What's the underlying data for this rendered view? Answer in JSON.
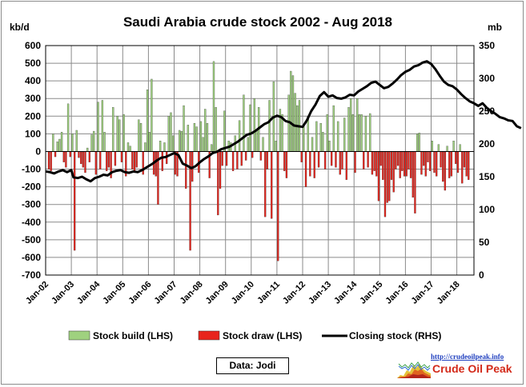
{
  "chart_data": {
    "type": "bar+line",
    "title": "Saudi Arabia crude stock 2002 - Aug 2018",
    "left_axis": {
      "unit_label": "kb/d",
      "min": -700,
      "max": 600,
      "step": 100,
      "ticks": [
        "600",
        "500",
        "400",
        "300",
        "200",
        "100",
        "0",
        "-100",
        "-200",
        "-300",
        "-400",
        "-500",
        "-600",
        "-700"
      ]
    },
    "right_axis": {
      "unit_label": "mb",
      "min": 0,
      "max": 350,
      "step": 50,
      "ticks": [
        "350",
        "300",
        "250",
        "200",
        "150",
        "100",
        "50",
        "0"
      ]
    },
    "x_labels": [
      "Jan-02",
      "Jan-03",
      "Jan-04",
      "Jan-05",
      "Jan-06",
      "Jan-07",
      "Jan-08",
      "Jan-09",
      "Jan-10",
      "Jan-11",
      "Jan-12",
      "Jan-13",
      "Jan-14",
      "Jan-15",
      "Jan-16",
      "Jan-17",
      "Jan-18"
    ],
    "months": 200,
    "grid": true,
    "colors": {
      "build": "#9fd17f",
      "draw": "#e8241c",
      "line": "#000000"
    },
    "stock_build_lhs": [
      [
        3,
        100
      ],
      [
        5,
        55
      ],
      [
        6,
        70
      ],
      [
        7,
        110
      ],
      [
        10,
        270
      ],
      [
        12,
        100
      ],
      [
        14,
        120
      ],
      [
        19,
        20
      ],
      [
        21,
        95
      ],
      [
        22,
        115
      ],
      [
        24,
        280
      ],
      [
        26,
        290
      ],
      [
        27,
        110
      ],
      [
        31,
        250
      ],
      [
        33,
        200
      ],
      [
        34,
        180
      ],
      [
        36,
        210
      ],
      [
        38,
        50
      ],
      [
        39,
        30
      ],
      [
        43,
        180
      ],
      [
        44,
        160
      ],
      [
        46,
        50
      ],
      [
        47,
        350
      ],
      [
        48,
        110
      ],
      [
        49,
        410
      ],
      [
        53,
        60
      ],
      [
        55,
        50
      ],
      [
        57,
        200
      ],
      [
        58,
        220
      ],
      [
        59,
        90
      ],
      [
        62,
        120
      ],
      [
        63,
        115
      ],
      [
        64,
        260
      ],
      [
        66,
        150
      ],
      [
        69,
        160
      ],
      [
        70,
        140
      ],
      [
        72,
        170
      ],
      [
        73,
        80
      ],
      [
        74,
        240
      ],
      [
        75,
        160
      ],
      [
        77,
        40
      ],
      [
        78,
        510
      ],
      [
        79,
        250
      ],
      [
        83,
        230
      ],
      [
        85,
        60
      ],
      [
        86,
        50
      ],
      [
        88,
        90
      ],
      [
        90,
        175
      ],
      [
        92,
        320
      ],
      [
        94,
        80
      ],
      [
        95,
        265
      ],
      [
        97,
        300
      ],
      [
        98,
        120
      ],
      [
        99,
        250
      ],
      [
        101,
        80
      ],
      [
        104,
        290
      ],
      [
        106,
        395
      ],
      [
        107,
        60
      ],
      [
        109,
        240
      ],
      [
        110,
        210
      ],
      [
        113,
        320
      ],
      [
        114,
        455
      ],
      [
        115,
        430
      ],
      [
        116,
        330
      ],
      [
        117,
        260
      ],
      [
        118,
        290
      ],
      [
        120,
        140
      ],
      [
        122,
        200
      ],
      [
        124,
        80
      ],
      [
        126,
        170
      ],
      [
        128,
        160
      ],
      [
        129,
        110
      ],
      [
        131,
        210
      ],
      [
        132,
        60
      ],
      [
        134,
        260
      ],
      [
        136,
        170
      ],
      [
        139,
        190
      ],
      [
        141,
        250
      ],
      [
        142,
        300
      ],
      [
        143,
        210
      ],
      [
        145,
        300
      ],
      [
        146,
        210
      ],
      [
        147,
        210
      ],
      [
        149,
        200
      ],
      [
        151,
        215
      ],
      [
        173,
        100
      ],
      [
        174,
        105
      ],
      [
        180,
        60
      ],
      [
        183,
        40
      ],
      [
        187,
        30
      ],
      [
        190,
        60
      ],
      [
        193,
        40
      ]
    ],
    "stock_draw_lhs": [
      [
        1,
        -100
      ],
      [
        2,
        -110
      ],
      [
        4,
        -30
      ],
      [
        8,
        -60
      ],
      [
        9,
        -90
      ],
      [
        11,
        -30
      ],
      [
        13,
        -560
      ],
      [
        15,
        -35
      ],
      [
        16,
        -70
      ],
      [
        17,
        -90
      ],
      [
        18,
        -120
      ],
      [
        20,
        -60
      ],
      [
        23,
        -130
      ],
      [
        25,
        -100
      ],
      [
        28,
        -110
      ],
      [
        29,
        -90
      ],
      [
        30,
        -150
      ],
      [
        32,
        -80
      ],
      [
        35,
        -60
      ],
      [
        37,
        -140
      ],
      [
        40,
        -100
      ],
      [
        41,
        -120
      ],
      [
        42,
        -90
      ],
      [
        45,
        -130
      ],
      [
        50,
        -130
      ],
      [
        51,
        -140
      ],
      [
        52,
        -300
      ],
      [
        54,
        -110
      ],
      [
        56,
        -70
      ],
      [
        60,
        -130
      ],
      [
        61,
        -140
      ],
      [
        65,
        -210
      ],
      [
        67,
        -560
      ],
      [
        68,
        -170
      ],
      [
        71,
        -120
      ],
      [
        76,
        -150
      ],
      [
        80,
        -360
      ],
      [
        81,
        -210
      ],
      [
        82,
        -80
      ],
      [
        84,
        -80
      ],
      [
        87,
        -110
      ],
      [
        89,
        -100
      ],
      [
        91,
        -80
      ],
      [
        93,
        -50
      ],
      [
        96,
        -35
      ],
      [
        100,
        -50
      ],
      [
        102,
        -370
      ],
      [
        103,
        -100
      ],
      [
        105,
        -380
      ],
      [
        108,
        -620
      ],
      [
        111,
        -110
      ],
      [
        112,
        -150
      ],
      [
        119,
        -60
      ],
      [
        121,
        -200
      ],
      [
        123,
        -140
      ],
      [
        125,
        -150
      ],
      [
        127,
        -90
      ],
      [
        130,
        -100
      ],
      [
        133,
        -80
      ],
      [
        135,
        -90
      ],
      [
        137,
        -130
      ],
      [
        138,
        -100
      ],
      [
        140,
        -160
      ],
      [
        144,
        -120
      ],
      [
        148,
        -100
      ],
      [
        150,
        -90
      ],
      [
        152,
        -130
      ],
      [
        153,
        -110
      ],
      [
        154,
        -140
      ],
      [
        155,
        -280
      ],
      [
        156,
        -80
      ],
      [
        157,
        -160
      ],
      [
        158,
        -370
      ],
      [
        159,
        -290
      ],
      [
        160,
        -280
      ],
      [
        161,
        -160
      ],
      [
        162,
        -230
      ],
      [
        163,
        -100
      ],
      [
        164,
        -80
      ],
      [
        165,
        -150
      ],
      [
        166,
        -110
      ],
      [
        167,
        -140
      ],
      [
        168,
        -140
      ],
      [
        169,
        -100
      ],
      [
        170,
        -150
      ],
      [
        171,
        -260
      ],
      [
        172,
        -350
      ],
      [
        175,
        -130
      ],
      [
        176,
        -80
      ],
      [
        177,
        -140
      ],
      [
        178,
        -60
      ],
      [
        179,
        -110
      ],
      [
        181,
        -120
      ],
      [
        182,
        -140
      ],
      [
        184,
        -90
      ],
      [
        185,
        -170
      ],
      [
        186,
        -220
      ],
      [
        188,
        -150
      ],
      [
        189,
        -140
      ],
      [
        191,
        -70
      ],
      [
        192,
        -120
      ],
      [
        194,
        -180
      ],
      [
        195,
        -90
      ],
      [
        196,
        -140
      ],
      [
        197,
        -160
      ]
    ],
    "closing_stock_rhs": [
      [
        0,
        158
      ],
      [
        2,
        157
      ],
      [
        4,
        155
      ],
      [
        6,
        158
      ],
      [
        8,
        160
      ],
      [
        10,
        157
      ],
      [
        12,
        160
      ],
      [
        13,
        149
      ],
      [
        15,
        148
      ],
      [
        17,
        150
      ],
      [
        19,
        146
      ],
      [
        21,
        143
      ],
      [
        23,
        148
      ],
      [
        25,
        150
      ],
      [
        27,
        153
      ],
      [
        29,
        152
      ],
      [
        31,
        157
      ],
      [
        33,
        159
      ],
      [
        35,
        160
      ],
      [
        37,
        157
      ],
      [
        39,
        156
      ],
      [
        41,
        158
      ],
      [
        43,
        157
      ],
      [
        45,
        160
      ],
      [
        47,
        164
      ],
      [
        49,
        168
      ],
      [
        50,
        170
      ],
      [
        52,
        175
      ],
      [
        54,
        179
      ],
      [
        56,
        180
      ],
      [
        58,
        183
      ],
      [
        60,
        186
      ],
      [
        62,
        183
      ],
      [
        64,
        170
      ],
      [
        66,
        167
      ],
      [
        68,
        163
      ],
      [
        70,
        166
      ],
      [
        72,
        172
      ],
      [
        74,
        177
      ],
      [
        76,
        181
      ],
      [
        78,
        186
      ],
      [
        80,
        188
      ],
      [
        82,
        192
      ],
      [
        84,
        194
      ],
      [
        86,
        196
      ],
      [
        88,
        200
      ],
      [
        90,
        204
      ],
      [
        92,
        209
      ],
      [
        94,
        214
      ],
      [
        96,
        216
      ],
      [
        98,
        220
      ],
      [
        100,
        225
      ],
      [
        102,
        230
      ],
      [
        104,
        233
      ],
      [
        106,
        240
      ],
      [
        108,
        243
      ],
      [
        110,
        241
      ],
      [
        112,
        235
      ],
      [
        114,
        233
      ],
      [
        116,
        228
      ],
      [
        118,
        227
      ],
      [
        120,
        226
      ],
      [
        122,
        236
      ],
      [
        124,
        250
      ],
      [
        126,
        260
      ],
      [
        128,
        273
      ],
      [
        130,
        279
      ],
      [
        132,
        272
      ],
      [
        134,
        274
      ],
      [
        136,
        270
      ],
      [
        138,
        269
      ],
      [
        140,
        271
      ],
      [
        142,
        275
      ],
      [
        144,
        274
      ],
      [
        146,
        280
      ],
      [
        148,
        284
      ],
      [
        150,
        288
      ],
      [
        152,
        293
      ],
      [
        154,
        295
      ],
      [
        156,
        290
      ],
      [
        158,
        285
      ],
      [
        160,
        287
      ],
      [
        162,
        292
      ],
      [
        164,
        298
      ],
      [
        166,
        305
      ],
      [
        168,
        310
      ],
      [
        170,
        313
      ],
      [
        172,
        318
      ],
      [
        174,
        320
      ],
      [
        176,
        324
      ],
      [
        178,
        326
      ],
      [
        180,
        322
      ],
      [
        182,
        314
      ],
      [
        184,
        304
      ],
      [
        186,
        295
      ],
      [
        188,
        290
      ],
      [
        190,
        288
      ],
      [
        192,
        283
      ],
      [
        194,
        276
      ],
      [
        196,
        270
      ],
      [
        198,
        265
      ],
      [
        200,
        262
      ],
      [
        202,
        258
      ],
      [
        204,
        262
      ],
      [
        206,
        255
      ],
      [
        208,
        250
      ],
      [
        210,
        246
      ],
      [
        212,
        241
      ],
      [
        214,
        239
      ],
      [
        216,
        236
      ],
      [
        218,
        235
      ],
      [
        220,
        227
      ],
      [
        222,
        224
      ]
    ],
    "legend": [
      {
        "label": "Stock build (LHS)",
        "kind": "bar",
        "color": "#9fd17f"
      },
      {
        "label": "Stock draw (LHS)",
        "kind": "bar",
        "color": "#e8241c"
      },
      {
        "label": "Closing stock (RHS)",
        "kind": "line",
        "color": "#000000"
      }
    ],
    "legend_position": "bottom",
    "source_note": "Data: Jodi"
  },
  "brand": {
    "url": "http://crudeoilpeak.info",
    "name": "Crude Oil Peak"
  }
}
